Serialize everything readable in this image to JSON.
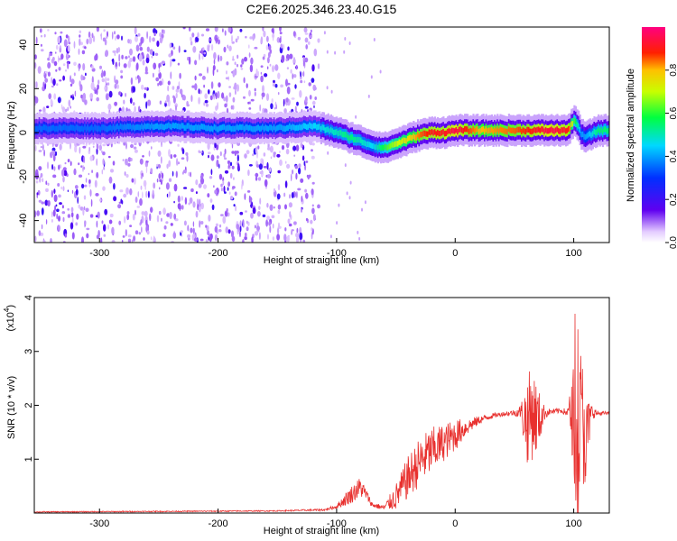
{
  "title": "C2E6.2025.346.23.40.G15",
  "chart_data": [
    {
      "type": "heatmap",
      "xlabel": "Height of straight line (km)",
      "ylabel": "Frequency (Hz)",
      "xlim": [
        -355,
        130
      ],
      "ylim": [
        -50,
        48
      ],
      "xticks": [
        -300,
        -200,
        -100,
        0,
        100
      ],
      "xtick_labels": [
        "-300",
        "-200",
        "-100",
        "0",
        "100"
      ],
      "yticks": [
        -40,
        -20,
        0,
        20,
        40
      ],
      "ytick_labels": [
        "-40",
        "-20",
        "0",
        "20",
        "40"
      ],
      "colorbar": {
        "label": "Normalized spectral amplitude",
        "ticks": [
          0.0,
          0.2,
          0.4,
          0.6,
          0.8
        ],
        "tick_labels": [
          "0.0",
          "0.2",
          "0.4",
          "0.6",
          "0.8"
        ],
        "colormap": "rainbow (white-violet-blue-cyan-green-yellow-red-magenta)",
        "range": [
          0,
          1
        ]
      },
      "ridge": {
        "x": [
          -355,
          -300,
          -250,
          -200,
          -150,
          -120,
          -100,
          -90,
          -80,
          -70,
          -60,
          -50,
          -40,
          -30,
          -20,
          -10,
          0,
          20,
          50,
          80,
          95,
          100,
          103,
          106,
          110,
          120,
          130
        ],
        "frequency": [
          2,
          2,
          3,
          2,
          2,
          3,
          0,
          -2,
          -4,
          -6,
          -7,
          -5,
          -3,
          -1,
          0,
          0,
          1,
          1,
          1,
          1,
          1,
          6,
          3,
          -1,
          -2,
          1,
          1
        ],
        "amplitude": [
          0.35,
          0.35,
          0.4,
          0.4,
          0.4,
          0.45,
          0.5,
          0.55,
          0.5,
          0.45,
          0.6,
          0.7,
          0.75,
          0.85,
          0.9,
          0.9,
          0.95,
          0.8,
          0.85,
          0.95,
          0.9,
          0.6,
          0.5,
          0.4,
          0.4,
          0.55,
          0.55
        ]
      },
      "noise_region_x": [
        -355,
        -115
      ]
    },
    {
      "type": "line",
      "xlabel": "Height of straight line (km)",
      "ylabel": "SNR (10 * v/v)",
      "y_scale_note": "(x10",
      "y_scale_exp": "4",
      "xlim": [
        -355,
        130
      ],
      "ylim": [
        0,
        4
      ],
      "xticks": [
        -300,
        -200,
        -100,
        0,
        100
      ],
      "xtick_labels": [
        "-300",
        "-200",
        "-100",
        "0",
        "100"
      ],
      "yticks": [
        1,
        2,
        3,
        4
      ],
      "ytick_labels": [
        "1",
        "2",
        "3",
        "4"
      ],
      "color": "#e8302e",
      "series": [
        {
          "x": [
            -355,
            -250,
            -150,
            -110,
            -100,
            -90,
            -80,
            -75,
            -70,
            -60,
            -50,
            -40,
            -30,
            -20,
            -10,
            0,
            10,
            20,
            30,
            40,
            50,
            55,
            60,
            65,
            70,
            75,
            80,
            90,
            95,
            100,
            103,
            106,
            110,
            115,
            120,
            130
          ],
          "y": [
            0.02,
            0.03,
            0.04,
            0.06,
            0.12,
            0.3,
            0.48,
            0.35,
            0.15,
            0.1,
            0.3,
            0.65,
            0.95,
            1.15,
            1.3,
            1.45,
            1.6,
            1.72,
            1.8,
            1.84,
            1.86,
            1.88,
            1.7,
            1.88,
            1.72,
            1.86,
            1.88,
            1.9,
            1.86,
            1.8,
            0.5,
            1.9,
            1.3,
            1.88,
            1.85,
            1.85
          ],
          "noise_amplitude": [
            0.01,
            0.01,
            0.01,
            0.02,
            0.04,
            0.15,
            0.2,
            0.1,
            0.05,
            0.05,
            0.25,
            0.4,
            0.45,
            0.45,
            0.35,
            0.3,
            0.15,
            0.08,
            0.05,
            0.04,
            0.06,
            0.12,
            0.8,
            0.9,
            0.6,
            0.15,
            0.05,
            0.05,
            0.08,
            1.0,
            1.2,
            1.3,
            0.9,
            0.15,
            0.05,
            0.03
          ]
        }
      ]
    }
  ]
}
